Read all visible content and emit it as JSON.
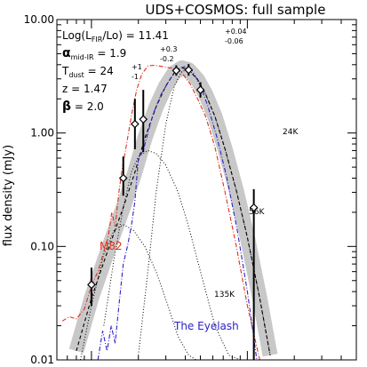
{
  "chart_data": {
    "type": "line",
    "title": "UDS+COSMOS: full sample",
    "xlabel": "",
    "ylabel": "flux density (mJy)",
    "xscale": "log",
    "yscale": "log",
    "xlim": [
      60,
      5000
    ],
    "ylim": [
      0.01,
      10.0
    ],
    "y_tick_labels": [
      "10.00",
      "1.00",
      "0.10",
      "0.01"
    ],
    "y_tick_values": [
      10,
      1,
      0.1,
      0.01
    ],
    "x_tick_labels": [],
    "grid": false,
    "annotations": {
      "line1_main": "Log(L",
      "line1_sub": "FIR",
      "line1_rest": "/Lo) = 11.41",
      "line1_sup": "+0.04",
      "line1_inf": "-0.06",
      "line2_symbol": "α",
      "line2_sub": "mid-IR",
      "line2_rest": " = 1.9",
      "line2_sup": "+0.3",
      "line2_inf": "-0.2",
      "line3_main": "T",
      "line3_sub": "dust",
      "line3_rest": " = 24",
      "line3_sup": "+1",
      "line3_inf": "-1",
      "line4": "z = 1.47",
      "line5_symbol": "β",
      "line5_rest": " = 2.0",
      "label_24k": "24K",
      "label_56k": "56K",
      "label_135k": "135K",
      "label_m82": "M82",
      "label_eyelash": "The Eyelash"
    },
    "data_points": [
      {
        "x": 100,
        "y": 0.046,
        "ylo": 0.03,
        "yhi": 0.065
      },
      {
        "x": 160,
        "y": 0.4,
        "ylo": 0.28,
        "yhi": 0.62
      },
      {
        "x": 190,
        "y": 1.2,
        "ylo": 0.72,
        "yhi": 2.0
      },
      {
        "x": 215,
        "y": 1.32,
        "ylo": 0.68,
        "yhi": 2.4
      },
      {
        "x": 350,
        "y": 3.55,
        "ylo": 3.2,
        "yhi": 3.95
      },
      {
        "x": 420,
        "y": 3.6,
        "ylo": 3.2,
        "yhi": 4.05
      },
      {
        "x": 500,
        "y": 2.4,
        "ylo": 2.05,
        "yhi": 2.8
      },
      {
        "x": 1100,
        "y": 0.22,
        "ylo": 0.008,
        "yhi": 0.32
      }
    ],
    "series": [
      {
        "name": "",
        "style": "dashed",
        "color": "#000000",
        "x": [
          80,
          100,
          130,
          160,
          190,
          220,
          260,
          300,
          340,
          380,
          420,
          480,
          540,
          620,
          720,
          850,
          1000,
          1200,
          1400
        ],
        "y": [
          0.012,
          0.035,
          0.1,
          0.22,
          0.45,
          0.9,
          1.7,
          2.6,
          3.4,
          3.75,
          3.6,
          2.95,
          2.2,
          1.4,
          0.72,
          0.31,
          0.12,
          0.035,
          0.011
        ]
      },
      {
        "name": "24K",
        "style": "dotted",
        "color": "#000000",
        "x": [
          200,
          230,
          260,
          300,
          340,
          380,
          420,
          480,
          540,
          620,
          720,
          850,
          1000,
          1200,
          1400
        ],
        "y": [
          0.011,
          0.06,
          0.3,
          1.2,
          2.6,
          3.5,
          3.6,
          3.0,
          2.2,
          1.4,
          0.72,
          0.31,
          0.12,
          0.035,
          0.011
        ]
      },
      {
        "name": "56K",
        "style": "dotted",
        "color": "#000000",
        "x": [
          120,
          140,
          160,
          180,
          200,
          230,
          260,
          300,
          360,
          420,
          500,
          620,
          760,
          900
        ],
        "y": [
          0.02,
          0.08,
          0.22,
          0.45,
          0.62,
          0.7,
          0.66,
          0.52,
          0.3,
          0.15,
          0.06,
          0.02,
          0.011,
          0.01
        ]
      },
      {
        "name": "135K",
        "style": "dotted",
        "color": "#000000",
        "x": [
          85,
          100,
          120,
          140,
          160,
          185,
          220,
          260,
          310,
          360,
          420,
          470
        ],
        "y": [
          0.01,
          0.03,
          0.085,
          0.14,
          0.155,
          0.14,
          0.1,
          0.06,
          0.03,
          0.016,
          0.011,
          0.01
        ]
      },
      {
        "name": "M82",
        "style": "dash-dot",
        "color": "#e0301e",
        "x": [
          65,
          72,
          80,
          90,
          100,
          110,
          120,
          128,
          135,
          142,
          150,
          158,
          168,
          180,
          195,
          210,
          230,
          250,
          270,
          300,
          340,
          380,
          430,
          480,
          540,
          620,
          720,
          850,
          1000,
          1200
        ],
        "y": [
          0.022,
          0.024,
          0.023,
          0.028,
          0.045,
          0.06,
          0.09,
          0.12,
          0.2,
          0.15,
          0.3,
          0.5,
          0.8,
          1.4,
          2.4,
          3.3,
          3.9,
          3.95,
          3.9,
          3.8,
          3.7,
          3.4,
          2.7,
          2.0,
          1.4,
          0.75,
          0.3,
          0.1,
          0.03,
          0.01
        ]
      },
      {
        "name": "The Eyelash",
        "style": "dash-dot",
        "color": "#2c22c8",
        "x": [
          110,
          118,
          126,
          134,
          142,
          150,
          160,
          170,
          180,
          190,
          200,
          215,
          230,
          250,
          280,
          320,
          360,
          400,
          440,
          500,
          560,
          640,
          740,
          860,
          1000,
          1150
        ],
        "y": [
          0.01,
          0.018,
          0.012,
          0.02,
          0.014,
          0.03,
          0.07,
          0.1,
          0.15,
          0.25,
          0.6,
          0.7,
          1.0,
          1.5,
          2.2,
          3.0,
          3.7,
          3.85,
          3.6,
          2.6,
          1.7,
          0.9,
          0.4,
          0.14,
          0.04,
          0.01
        ]
      }
    ]
  }
}
